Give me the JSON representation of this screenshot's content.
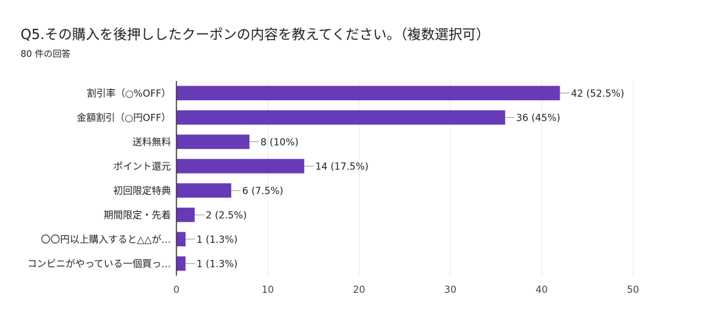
{
  "title": "Q5.その購入を後押ししたクーポンの内容を教えてください。（複数選択可）",
  "subtitle": "80 件の回答",
  "colors": {
    "bar": "#673ab7",
    "grid": "#e8e8e8",
    "axis": "#333333"
  },
  "chart_data": {
    "type": "bar",
    "orientation": "horizontal",
    "categories": [
      "割引率（○%OFF）",
      "金額割引（○円OFF）",
      "送料無料",
      "ポイント還元",
      "初回限定特典",
      "期間限定・先着",
      "〇〇円以上購入すると△△が…",
      "コンビニがやっている一個買っ…"
    ],
    "values": [
      42,
      36,
      8,
      14,
      6,
      2,
      1,
      1
    ],
    "value_labels": [
      "42 (52.5%)",
      "36 (45%)",
      "8 (10%)",
      "14 (17.5%)",
      "6 (7.5%)",
      "2 (2.5%)",
      "1 (1.3%)",
      "1 (1.3%)"
    ],
    "xlim": [
      0,
      50
    ],
    "xticks": [
      0,
      10,
      20,
      30,
      40,
      50
    ],
    "grid": true
  }
}
